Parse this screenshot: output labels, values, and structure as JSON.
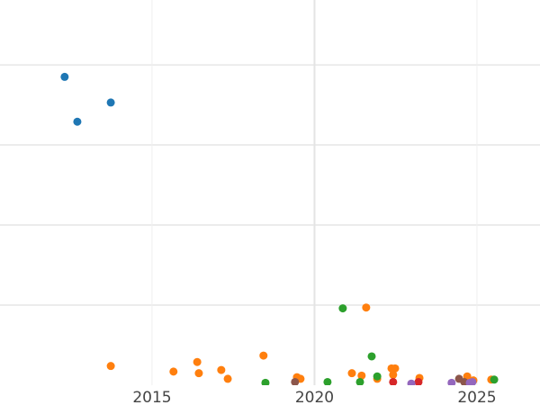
{
  "chart_data": {
    "type": "scatter",
    "title": "",
    "xlabel": "",
    "ylabel": "",
    "xlim": [
      2010.32,
      2026.94
    ],
    "ylim": [
      0,
      4.81
    ],
    "x_ticks": [
      "2015",
      "2020",
      "2025"
    ],
    "x_tick_values": [
      2015,
      2020,
      2025
    ],
    "y_gridlines": [
      1,
      2,
      3,
      4
    ],
    "grid": true,
    "series": [
      {
        "color": "#1f77b4",
        "points": [
          [
            2012.31,
            3.85
          ],
          [
            2012.7,
            3.29
          ],
          [
            2013.73,
            3.53
          ]
        ]
      },
      {
        "color": "#ff7f0e",
        "points": [
          [
            2013.73,
            0.24
          ],
          [
            2015.66,
            0.17
          ],
          [
            2016.39,
            0.29
          ],
          [
            2016.44,
            0.15
          ],
          [
            2017.13,
            0.19
          ],
          [
            2017.33,
            0.08
          ],
          [
            2018.43,
            0.37
          ],
          [
            2019.46,
            0.1
          ],
          [
            2019.57,
            0.08
          ],
          [
            2021.15,
            0.15
          ],
          [
            2021.45,
            0.12
          ],
          [
            2021.59,
            0.97
          ],
          [
            2021.93,
            0.08
          ],
          [
            2022.37,
            0.21
          ],
          [
            2022.48,
            0.21
          ],
          [
            2022.42,
            0.13
          ],
          [
            2023.23,
            0.09
          ],
          [
            2024.7,
            0.11
          ],
          [
            2024.89,
            0.06
          ],
          [
            2025.44,
            0.07
          ]
        ]
      },
      {
        "color": "#2ca02c",
        "points": [
          [
            2018.49,
            0.03
          ],
          [
            2020.87,
            0.96
          ],
          [
            2020.4,
            0.04
          ],
          [
            2021.4,
            0.04
          ],
          [
            2021.76,
            0.36
          ],
          [
            2021.93,
            0.11
          ],
          [
            2025.53,
            0.07
          ]
        ]
      },
      {
        "color": "#8c564b",
        "points": [
          [
            2019.4,
            0.04
          ],
          [
            2024.45,
            0.08
          ],
          [
            2024.61,
            0.04
          ]
        ]
      },
      {
        "color": "#d62728",
        "points": [
          [
            2022.42,
            0.04
          ],
          [
            2023.2,
            0.04
          ]
        ]
      },
      {
        "color": "#9467bd",
        "points": [
          [
            2022.98,
            0.02
          ],
          [
            2024.22,
            0.03
          ],
          [
            2024.78,
            0.03
          ],
          [
            2024.86,
            0.04
          ]
        ]
      }
    ]
  }
}
